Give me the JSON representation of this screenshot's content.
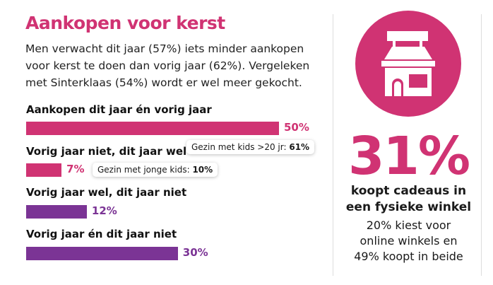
{
  "title": "Aankopen voor kerst",
  "intro": [
    "Men verwacht dit jaar (57%) iets minder aankopen",
    "voor kerst te doen dan vorig jaar (62%). Vergeleken",
    "met Sinterklaas (54%) wordt er wel meer gekocht."
  ],
  "colors": {
    "pink": "#d03373",
    "purple": "#7b3495"
  },
  "chart_data": {
    "type": "bar",
    "orientation": "horizontal",
    "categories": [
      "Aankopen dit jaar én vorig jaar",
      "Vorig jaar niet, dit jaar wel",
      "Vorig jaar wel, dit jaar niet",
      "Vorig jaar én dit jaar niet"
    ],
    "values": [
      50,
      7,
      12,
      30
    ],
    "value_labels": [
      "50%",
      "7%",
      "12%",
      "30%"
    ],
    "bar_colors": [
      "#d03373",
      "#d03373",
      "#7b3495",
      "#7b3495"
    ],
    "annotations": [
      {
        "text": "Gezin met kids >20 jr: ",
        "bold": "61%"
      },
      {
        "text": "Gezin met jonge kids: ",
        "bold": "10%"
      }
    ]
  },
  "side": {
    "icon": "shop-icon",
    "stat": "31%",
    "headline": [
      "koopt cadeaus in",
      "een fysieke winkel"
    ],
    "sub": [
      "20% kiest voor",
      "online winkels en",
      "49% koopt in beide"
    ]
  }
}
